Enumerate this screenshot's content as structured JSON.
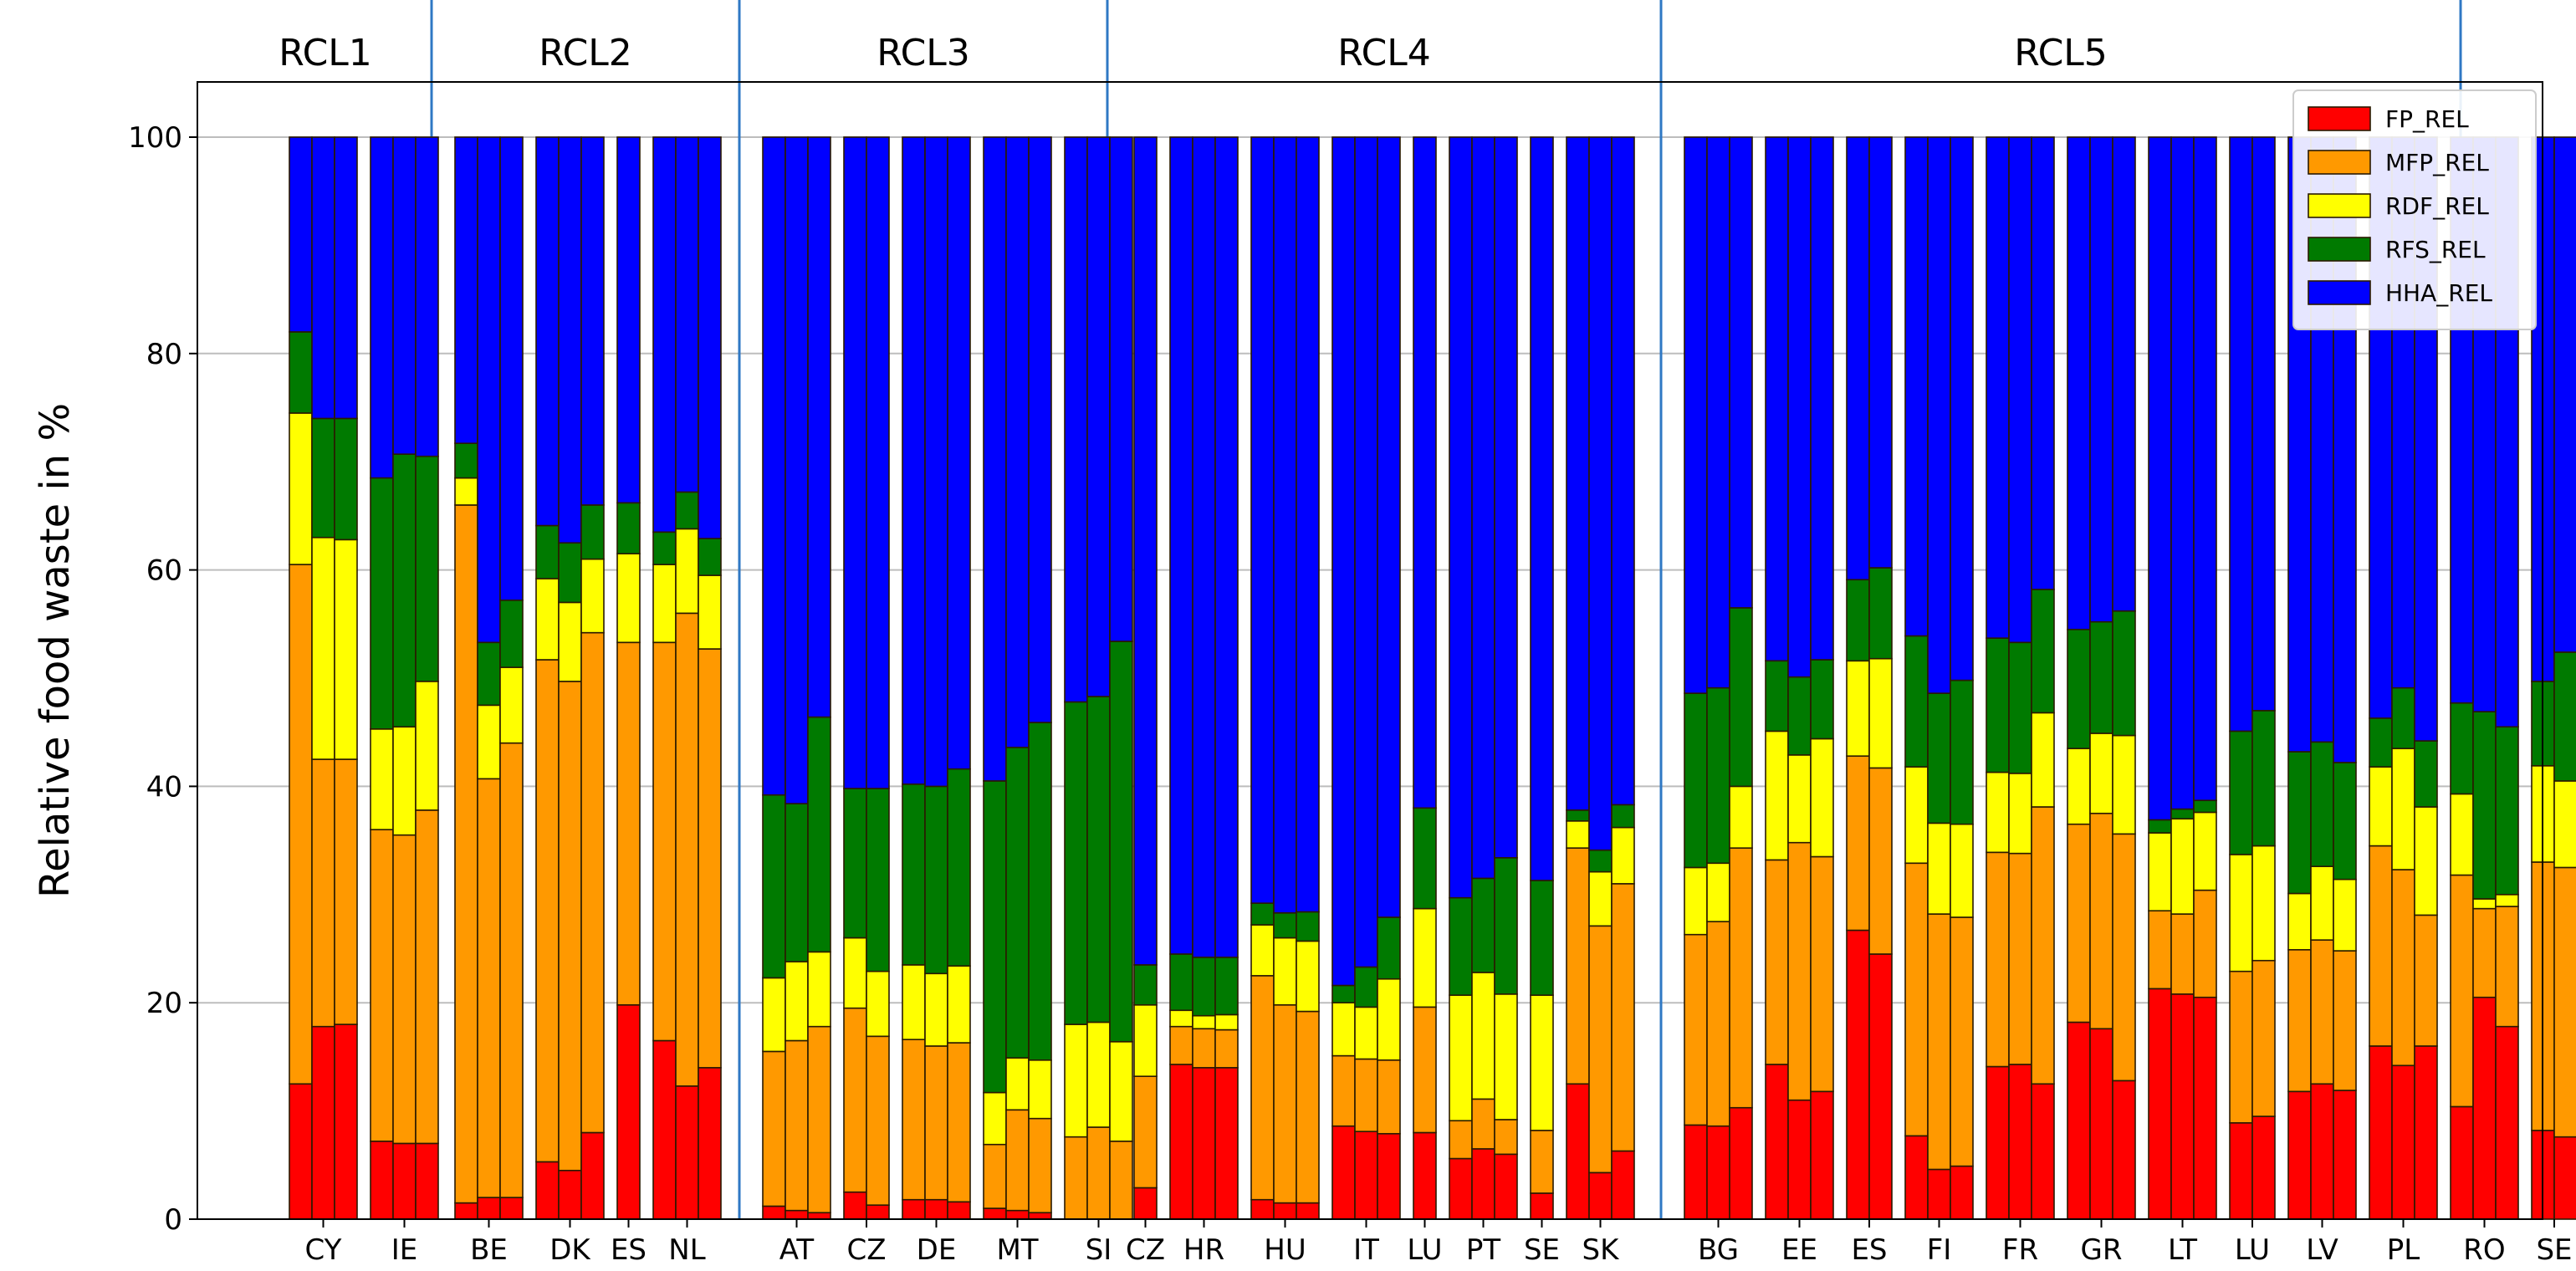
{
  "chart_data": {
    "type": "bar",
    "subtype": "stacked",
    "ylabel": "Relative food waste in %",
    "xlabel": "",
    "ylim": [
      0,
      100
    ],
    "yticks": [
      0,
      20,
      40,
      60,
      80,
      100
    ],
    "grid": "horizontal",
    "legend_position": "top-right",
    "series": [
      {
        "key": "FP_REL",
        "name": "FP_REL",
        "color": "#ff0000"
      },
      {
        "key": "MFP_REL",
        "name": "MFP_REL",
        "color": "#ff9900"
      },
      {
        "key": "RDF_REL",
        "name": "RDF_REL",
        "color": "#ffff00"
      },
      {
        "key": "RFS_REL",
        "name": "RFS_REL",
        "color": "#007a00"
      },
      {
        "key": "HHA_REL",
        "name": "HHA_REL",
        "color": "#0000ff"
      }
    ],
    "groups": [
      {
        "label": "RCL1",
        "countries": [
          {
            "label": "CY",
            "bars": [
              [
                12.5,
                60.5,
                74.5,
                82,
                100
              ],
              [
                17.8,
                42.5,
                63,
                74,
                100
              ],
              [
                18,
                42.5,
                62.8,
                74,
                100
              ]
            ]
          },
          {
            "label": "IE",
            "bars": [
              [
                7.2,
                36,
                45.3,
                68.5,
                100
              ],
              [
                7,
                35.5,
                45.5,
                70.7,
                100
              ],
              [
                7,
                37.8,
                49.7,
                70.5,
                100
              ]
            ]
          }
        ]
      },
      {
        "label": "RCL2",
        "countries": [
          {
            "label": "BE",
            "bars": [
              [
                1.5,
                66,
                68.5,
                71.7,
                100
              ],
              [
                2,
                40.7,
                47.5,
                53.3,
                100
              ],
              [
                2,
                44,
                51,
                57.2,
                100
              ]
            ]
          },
          {
            "label": "DK",
            "bars": [
              [
                5.3,
                51.7,
                59.2,
                64.1,
                100
              ],
              [
                4.5,
                49.7,
                57,
                62.5,
                100
              ],
              [
                8,
                54.2,
                61,
                66,
                100
              ]
            ]
          },
          {
            "label": "ES",
            "bars": [
              [
                19.8,
                53.3,
                61.5,
                66.2,
                100
              ]
            ]
          },
          {
            "label": "NL",
            "bars": [
              [
                16.5,
                53.3,
                60.5,
                63.5,
                100
              ],
              [
                12.3,
                56,
                63.8,
                67.2,
                100
              ],
              [
                14,
                52.7,
                59.5,
                62.9,
                100
              ]
            ]
          }
        ]
      },
      {
        "label": "RCL3",
        "countries": [
          {
            "label": "AT",
            "bars": [
              [
                1.2,
                15.5,
                22.3,
                39.2,
                100
              ],
              [
                0.8,
                16.5,
                23.8,
                38.4,
                100
              ],
              [
                0.6,
                17.8,
                24.7,
                46.4,
                100
              ]
            ]
          },
          {
            "label": "CZ",
            "bars": [
              [
                2.5,
                19.5,
                26,
                39.8,
                100
              ],
              [
                1.3,
                16.9,
                22.9,
                39.8,
                100
              ]
            ]
          },
          {
            "label": "DE",
            "bars": [
              [
                1.8,
                16.6,
                23.5,
                40.2,
                100
              ],
              [
                1.8,
                16,
                22.7,
                40,
                100
              ],
              [
                1.6,
                16.3,
                23.4,
                41.6,
                100
              ]
            ]
          },
          {
            "label": "MT",
            "bars": [
              [
                1,
                6.9,
                11.7,
                40.5,
                100
              ],
              [
                0.8,
                10.1,
                14.9,
                43.6,
                100
              ],
              [
                0.6,
                9.3,
                14.7,
                45.9,
                100
              ]
            ]
          },
          {
            "label": "SI",
            "bars": [
              [
                0,
                7.6,
                18,
                47.8,
                100
              ],
              [
                0,
                8.5,
                18.2,
                48.3,
                100
              ],
              [
                0,
                7.2,
                16.4,
                53.4,
                100
              ]
            ]
          }
        ]
      },
      {
        "label": "RCL4",
        "countries": [
          {
            "label": "CZ",
            "bars": [
              [
                2.9,
                13.2,
                19.8,
                23.5,
                100
              ]
            ]
          },
          {
            "label": "HR",
            "bars": [
              [
                14.3,
                17.8,
                19.3,
                24.5,
                100
              ],
              [
                14,
                17.6,
                18.8,
                24.2,
                100
              ],
              [
                14,
                17.5,
                18.9,
                24.2,
                100
              ]
            ]
          },
          {
            "label": "HU",
            "bars": [
              [
                1.8,
                22.5,
                27.2,
                29.2,
                100
              ],
              [
                1.5,
                19.8,
                26,
                28.3,
                100
              ],
              [
                1.5,
                19.2,
                25.7,
                28.4,
                100
              ]
            ]
          },
          {
            "label": "IT",
            "bars": [
              [
                8.6,
                15.1,
                20,
                21.6,
                100
              ],
              [
                8.1,
                14.8,
                19.6,
                23.3,
                100
              ],
              [
                7.9,
                14.7,
                22.2,
                27.9,
                100
              ]
            ]
          },
          {
            "label": "LU",
            "bars": [
              [
                8,
                19.6,
                28.7,
                38,
                100
              ]
            ]
          },
          {
            "label": "PT",
            "bars": [
              [
                5.6,
                9.1,
                20.7,
                29.7,
                100
              ],
              [
                6.5,
                11.1,
                22.8,
                31.5,
                100
              ],
              [
                6,
                9.2,
                20.8,
                33.4,
                100
              ]
            ]
          },
          {
            "label": "SE",
            "bars": [
              [
                2.4,
                8.2,
                20.7,
                31.3,
                100
              ]
            ]
          },
          {
            "label": "SK",
            "bars": [
              [
                12.5,
                34.3,
                36.8,
                37.8,
                100
              ],
              [
                4.3,
                27.1,
                32.1,
                34.1,
                100
              ],
              [
                6.3,
                31,
                36.2,
                38.3,
                100
              ]
            ]
          }
        ]
      },
      {
        "label": "RCL5",
        "countries": [
          {
            "label": "BG",
            "bars": [
              [
                8.7,
                26.3,
                32.5,
                48.6,
                100
              ],
              [
                8.6,
                27.5,
                32.9,
                49.1,
                100
              ],
              [
                10.3,
                34.3,
                40,
                56.5,
                100
              ]
            ]
          },
          {
            "label": "EE",
            "bars": [
              [
                14.3,
                33.2,
                45.1,
                51.6,
                100
              ],
              [
                11,
                34.8,
                42.9,
                50.1,
                100
              ],
              [
                11.8,
                33.5,
                44.4,
                51.7,
                100
              ]
            ]
          },
          {
            "label": "ES",
            "bars": [
              [
                26.7,
                42.8,
                51.6,
                59.1,
                100
              ],
              [
                24.5,
                41.7,
                51.8,
                60.2,
                100
              ]
            ]
          },
          {
            "label": "FI",
            "bars": [
              [
                7.7,
                32.9,
                41.8,
                53.9,
                100
              ],
              [
                4.6,
                28.2,
                36.6,
                48.6,
                100
              ],
              [
                4.9,
                27.9,
                36.5,
                49.8,
                100
              ]
            ]
          },
          {
            "label": "FR",
            "bars": [
              [
                14.1,
                33.9,
                41.3,
                53.7,
                100
              ],
              [
                14.3,
                33.8,
                41.2,
                53.3,
                100
              ],
              [
                12.5,
                38.1,
                46.8,
                58.2,
                100
              ]
            ]
          },
          {
            "label": "GR",
            "bars": [
              [
                18.2,
                36.5,
                43.5,
                54.5,
                100
              ],
              [
                17.6,
                37.5,
                44.9,
                55.2,
                100
              ],
              [
                12.8,
                35.6,
                44.7,
                56.2,
                100
              ]
            ]
          },
          {
            "label": "LT",
            "bars": [
              [
                21.3,
                28.5,
                35.7,
                36.9,
                100
              ],
              [
                20.8,
                28.2,
                37,
                37.9,
                100
              ],
              [
                20.5,
                30.4,
                37.6,
                38.7,
                100
              ]
            ]
          },
          {
            "label": "LU",
            "bars": [
              [
                8.9,
                22.9,
                33.7,
                45.1,
                100
              ],
              [
                9.5,
                23.9,
                34.5,
                47,
                100
              ]
            ]
          },
          {
            "label": "LV",
            "bars": [
              [
                11.8,
                24.9,
                30.1,
                43.2,
                100
              ],
              [
                12.5,
                25.8,
                32.6,
                44.1,
                100
              ],
              [
                11.9,
                24.8,
                31.4,
                42.2,
                100
              ]
            ]
          },
          {
            "label": "PL",
            "bars": [
              [
                16,
                34.5,
                41.8,
                46.3,
                100
              ],
              [
                14.2,
                32.3,
                43.5,
                49.1,
                100
              ],
              [
                16,
                28.1,
                38.1,
                44.2,
                100
              ]
            ]
          },
          {
            "label": "RO",
            "bars": [
              [
                10.4,
                31.8,
                39.3,
                47.7,
                100
              ],
              [
                20.5,
                28.7,
                29.6,
                46.9,
                100
              ],
              [
                17.8,
                28.9,
                30,
                45.5,
                100
              ]
            ]
          },
          {
            "label": "SE",
            "bars": [
              [
                8.2,
                33,
                41.9,
                49.7,
                100
              ],
              [
                7.6,
                32.5,
                40.5,
                52.4,
                100
              ]
            ]
          }
        ]
      }
    ]
  }
}
